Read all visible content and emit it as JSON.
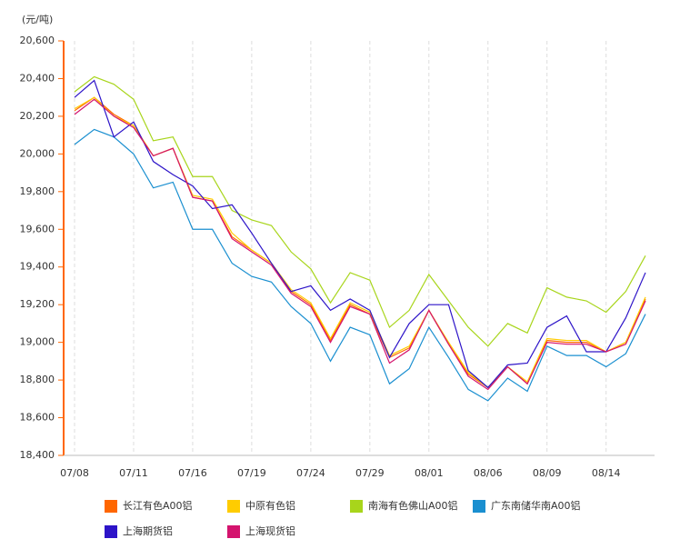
{
  "chart_data": {
    "type": "line",
    "y_unit": "(元/吨)",
    "categories": [
      "07/08",
      null,
      null,
      "07/11",
      null,
      null,
      "07/16",
      null,
      null,
      "07/19",
      null,
      null,
      "07/24",
      null,
      null,
      "07/29",
      null,
      null,
      "08/01",
      null,
      null,
      "08/06",
      null,
      null,
      "08/09",
      null,
      null,
      "08/14",
      null,
      null
    ],
    "series": [
      {
        "name": "长江有色A00铝",
        "color": "#ff6600",
        "values": [
          20230,
          20300,
          20210,
          20150,
          19990,
          20030,
          19770,
          19750,
          19560,
          19490,
          19420,
          19270,
          19200,
          19010,
          19200,
          19150,
          18920,
          18970,
          19170,
          18990,
          18830,
          18760,
          18870,
          18780,
          19010,
          19000,
          19000,
          18950,
          19000,
          19230
        ]
      },
      {
        "name": "中原有色铝",
        "color": "#ffcc00",
        "values": [
          20240,
          20300,
          20200,
          20150,
          19990,
          20030,
          19780,
          19760,
          19580,
          19490,
          19420,
          19280,
          19210,
          19020,
          19210,
          19160,
          18930,
          18980,
          19170,
          19000,
          18840,
          18760,
          18870,
          18790,
          19020,
          19010,
          19010,
          18950,
          19000,
          19240
        ]
      },
      {
        "name": "南海有色佛山A00铝",
        "color": "#a8d51b",
        "values": [
          20330,
          20410,
          20370,
          20290,
          20070,
          20090,
          19880,
          19880,
          19700,
          19650,
          19620,
          19480,
          19390,
          19210,
          19370,
          19330,
          19080,
          19170,
          19360,
          19220,
          19080,
          18980,
          19100,
          19050,
          19290,
          19240,
          19220,
          19160,
          19270,
          19460
        ]
      },
      {
        "name": "广东南储华南A00铝",
        "color": "#1a8fd0",
        "values": [
          20050,
          20130,
          20090,
          20000,
          19820,
          19850,
          19600,
          19600,
          19420,
          19350,
          19320,
          19190,
          19100,
          18900,
          19080,
          19040,
          18780,
          18860,
          19080,
          18920,
          18750,
          18690,
          18810,
          18740,
          18980,
          18930,
          18930,
          18870,
          18940,
          19150
        ]
      },
      {
        "name": "上海期货铝",
        "color": "#2d14c8",
        "values": [
          20300,
          20390,
          20090,
          20170,
          19960,
          19890,
          19830,
          19710,
          19730,
          19580,
          19420,
          19270,
          19300,
          19170,
          19230,
          19170,
          18920,
          19100,
          19200,
          19200,
          18850,
          18760,
          18880,
          18890,
          19080,
          19140,
          18950,
          18950,
          19130,
          19370
        ]
      },
      {
        "name": "上海现货铝",
        "color": "#d4146e",
        "values": [
          20210,
          20290,
          20200,
          20140,
          19990,
          20030,
          19770,
          19750,
          19550,
          19480,
          19410,
          19260,
          19190,
          19000,
          19190,
          19150,
          18890,
          18960,
          19170,
          18990,
          18820,
          18750,
          18870,
          18780,
          19000,
          18990,
          18990,
          18950,
          18990,
          19220
        ]
      }
    ],
    "ylim": [
      18400,
      20600
    ],
    "yticks": [
      {
        "value": 18400,
        "label": "18,400"
      },
      {
        "value": 18600,
        "label": "18,600"
      },
      {
        "value": 18800,
        "label": "18,800"
      },
      {
        "value": 19000,
        "label": "19,000"
      },
      {
        "value": 19200,
        "label": "19,200"
      },
      {
        "value": 19400,
        "label": "19,400"
      },
      {
        "value": 19600,
        "label": "19,600"
      },
      {
        "value": 19800,
        "label": "19,800"
      },
      {
        "value": 20000,
        "label": "20,000"
      },
      {
        "value": 20200,
        "label": "20,200"
      },
      {
        "value": 20400,
        "label": "20,400"
      },
      {
        "value": 20600,
        "label": "20,600"
      }
    ],
    "grid": "x",
    "legend": "bottom"
  }
}
